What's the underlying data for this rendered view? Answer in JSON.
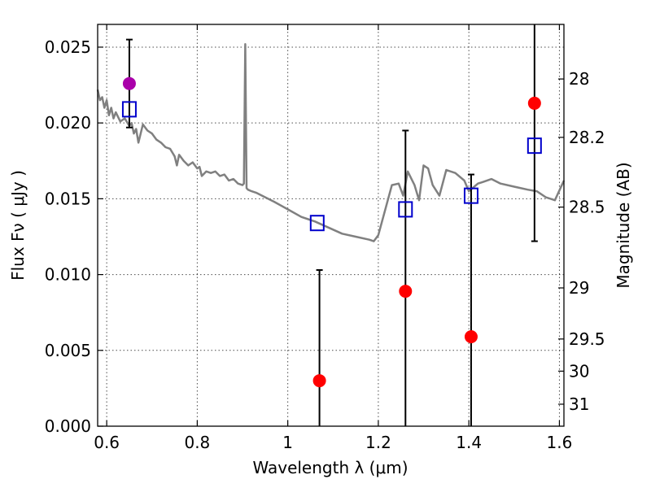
{
  "chart_data": {
    "type": "scatter",
    "xlabel": "Wavelength  λ (μm)",
    "ylabel": "Flux  Fν  ( μJy )",
    "y2label": "Magnitude (AB)",
    "xlim": [
      0.58,
      1.61
    ],
    "ylim": [
      0.0,
      0.0265
    ],
    "grid": true,
    "x_ticks": [
      0.6,
      0.8,
      1.0,
      1.2,
      1.4,
      1.6
    ],
    "x_tick_labels": [
      "0.6",
      "0.8",
      "1",
      "1.2",
      "1.4",
      "1.6"
    ],
    "y_ticks": [
      0.0,
      0.005,
      0.01,
      0.015,
      0.02,
      0.025
    ],
    "y_tick_labels": [
      "0.000",
      "0.005",
      "0.010",
      "0.015",
      "0.020",
      "0.025"
    ],
    "y2_ticks": [
      {
        "label": "28",
        "flux": 0.0229
      },
      {
        "label": "28.2",
        "flux": 0.01905
      },
      {
        "label": "28.5",
        "flux": 0.01445
      },
      {
        "label": "29",
        "flux": 0.00912
      },
      {
        "label": "29.5",
        "flux": 0.00575
      },
      {
        "label": "30",
        "flux": 0.00363
      },
      {
        "label": "31",
        "flux": 0.00145
      }
    ],
    "model_spectrum": {
      "name": "template",
      "color": "#808080",
      "x": [
        0.58,
        0.585,
        0.59,
        0.595,
        0.6,
        0.605,
        0.61,
        0.615,
        0.62,
        0.63,
        0.64,
        0.65,
        0.655,
        0.66,
        0.665,
        0.67,
        0.68,
        0.69,
        0.7,
        0.71,
        0.72,
        0.73,
        0.74,
        0.75,
        0.755,
        0.76,
        0.77,
        0.78,
        0.79,
        0.8,
        0.805,
        0.81,
        0.82,
        0.83,
        0.84,
        0.85,
        0.86,
        0.87,
        0.88,
        0.89,
        0.9,
        0.903,
        0.906,
        0.909,
        0.912,
        0.92,
        0.93,
        0.95,
        0.97,
        1.0,
        1.03,
        1.06,
        1.09,
        1.12,
        1.15,
        1.18,
        1.19,
        1.2,
        1.23,
        1.245,
        1.255,
        1.265,
        1.28,
        1.29,
        1.3,
        1.31,
        1.32,
        1.335,
        1.35,
        1.37,
        1.39,
        1.4,
        1.42,
        1.43,
        1.45,
        1.47,
        1.5,
        1.53,
        1.55,
        1.57,
        1.59,
        1.61
      ],
      "y": [
        0.0222,
        0.0215,
        0.0217,
        0.021,
        0.0215,
        0.0205,
        0.021,
        0.0203,
        0.0207,
        0.0201,
        0.0203,
        0.0198,
        0.02,
        0.0193,
        0.0196,
        0.0187,
        0.0199,
        0.0195,
        0.0193,
        0.0189,
        0.0187,
        0.0184,
        0.0183,
        0.0178,
        0.0172,
        0.0179,
        0.0175,
        0.0172,
        0.0174,
        0.017,
        0.0171,
        0.0165,
        0.0168,
        0.0167,
        0.0168,
        0.0165,
        0.0166,
        0.0162,
        0.0163,
        0.016,
        0.0159,
        0.016,
        0.0252,
        0.0157,
        0.0156,
        0.0155,
        0.0154,
        0.0151,
        0.0148,
        0.0143,
        0.0138,
        0.0135,
        0.0131,
        0.0127,
        0.0125,
        0.0123,
        0.0122,
        0.0126,
        0.0159,
        0.016,
        0.0152,
        0.0168,
        0.0159,
        0.0149,
        0.0172,
        0.017,
        0.0159,
        0.0152,
        0.0169,
        0.0167,
        0.0162,
        0.0155,
        0.016,
        0.0161,
        0.0163,
        0.016,
        0.0158,
        0.0156,
        0.0155,
        0.0151,
        0.0149,
        0.0162
      ]
    },
    "series": [
      {
        "name": "observed-red",
        "marker": "circle",
        "color": "#ff0000",
        "points": [
          {
            "x": 1.07,
            "y": 0.003,
            "ylo": 0.0,
            "yhi": 0.0103
          },
          {
            "x": 1.26,
            "y": 0.0089,
            "ylo": 0.0,
            "yhi": 0.0195
          },
          {
            "x": 1.405,
            "y": 0.0059,
            "ylo": 0.0,
            "yhi": 0.0166
          },
          {
            "x": 1.545,
            "y": 0.0213,
            "ylo": 0.0122,
            "yhi": 0.0265
          }
        ]
      },
      {
        "name": "observed-magenta",
        "marker": "circle",
        "color": "#aa00aa",
        "points": [
          {
            "x": 0.65,
            "y": 0.0226,
            "ylo": 0.0197,
            "yhi": 0.0255
          }
        ]
      },
      {
        "name": "model-photometry",
        "marker": "square",
        "color": "#0000cc",
        "points": [
          {
            "x": 0.65,
            "y": 0.0209
          },
          {
            "x": 1.065,
            "y": 0.0134
          },
          {
            "x": 1.26,
            "y": 0.0143
          },
          {
            "x": 1.405,
            "y": 0.0152
          },
          {
            "x": 1.545,
            "y": 0.0185
          }
        ]
      }
    ]
  }
}
